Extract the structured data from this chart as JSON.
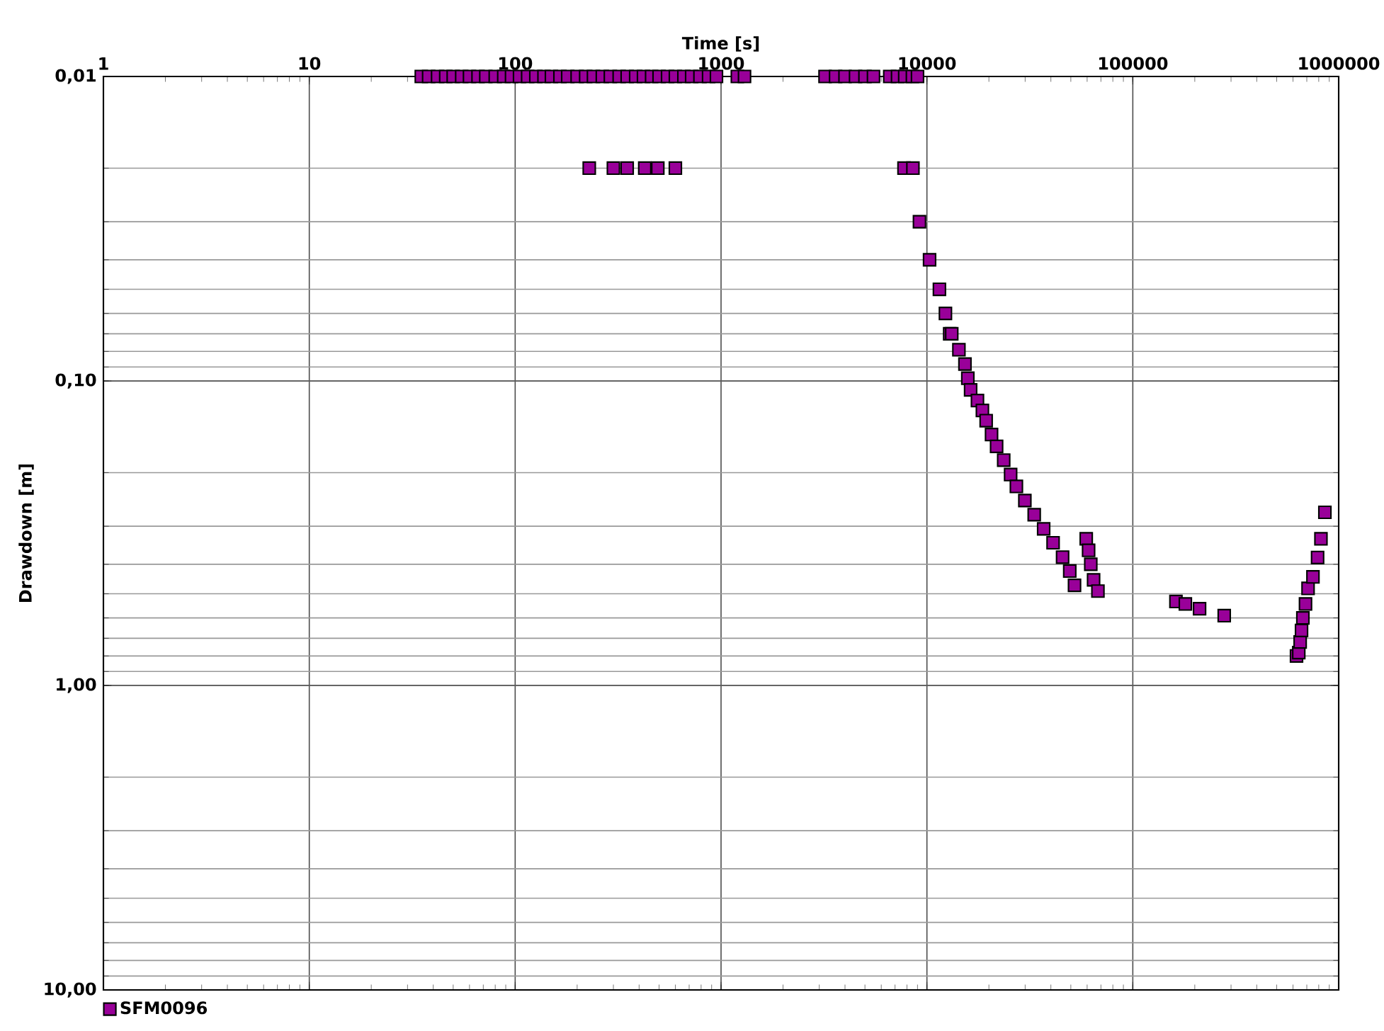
{
  "chart_data": {
    "type": "scatter",
    "xlabel": "Time [s]",
    "ylabel": "Drawdown [m]",
    "log": "xy",
    "grid": true,
    "legend": "bottom left",
    "marker": "square",
    "xlim": [
      1,
      1000000
    ],
    "xticks": [
      1,
      10,
      100,
      1000,
      10000,
      100000,
      1000000
    ],
    "ylim": [
      10,
      0.01
    ],
    "yticks": [
      {
        "value": 0.01,
        "label": "0,01"
      },
      {
        "value": 0.1,
        "label": "0,10"
      },
      {
        "value": 1,
        "label": "1,00"
      },
      {
        "value": 10,
        "label": "10,00"
      }
    ],
    "series": [
      {
        "name": "SFM0096",
        "color": "#990099",
        "x": [
          35,
          38,
          42,
          46,
          50,
          55,
          60,
          66,
          72,
          80,
          88,
          96,
          105,
          115,
          126,
          138,
          150,
          165,
          180,
          200,
          220,
          240,
          265,
          290,
          320,
          350,
          385,
          420,
          460,
          500,
          550,
          600,
          660,
          720,
          790,
          870,
          950,
          1200,
          1300,
          3200,
          3600,
          4000,
          4500,
          5000,
          5500,
          6600,
          7200,
          7800,
          8500,
          9000,
          229,
          300,
          350,
          426,
          493,
          600,
          7740,
          8550,
          9200,
          10300,
          11500,
          12300,
          12900,
          13200,
          14300,
          15300,
          15800,
          16300,
          17600,
          18600,
          19400,
          20600,
          21800,
          23600,
          25500,
          27200,
          29900,
          33200,
          36900,
          41000,
          45600,
          49400,
          52100,
          59400,
          61000,
          62500,
          64500,
          67700,
          162000,
          180000,
          211000,
          278000,
          624000,
          640000,
          650000,
          660000,
          670000,
          690000,
          710000,
          750000,
          790000,
          820000,
          857000
        ],
        "values": [
          0.01,
          0.01,
          0.01,
          0.01,
          0.01,
          0.01,
          0.01,
          0.01,
          0.01,
          0.01,
          0.01,
          0.01,
          0.01,
          0.01,
          0.01,
          0.01,
          0.01,
          0.01,
          0.01,
          0.01,
          0.01,
          0.01,
          0.01,
          0.01,
          0.01,
          0.01,
          0.01,
          0.01,
          0.01,
          0.01,
          0.01,
          0.01,
          0.01,
          0.01,
          0.01,
          0.01,
          0.01,
          0.01,
          0.01,
          0.01,
          0.01,
          0.01,
          0.01,
          0.01,
          0.01,
          0.01,
          0.01,
          0.01,
          0.01,
          0.01,
          0.02,
          0.02,
          0.02,
          0.02,
          0.02,
          0.02,
          0.02,
          0.02,
          0.03,
          0.04,
          0.05,
          0.06,
          0.07,
          0.07,
          0.079,
          0.088,
          0.098,
          0.107,
          0.116,
          0.125,
          0.135,
          0.15,
          0.164,
          0.182,
          0.203,
          0.222,
          0.247,
          0.275,
          0.306,
          0.34,
          0.379,
          0.421,
          0.469,
          0.33,
          0.36,
          0.4,
          0.45,
          0.49,
          0.53,
          0.54,
          0.56,
          0.59,
          0.8,
          0.78,
          0.72,
          0.66,
          0.6,
          0.54,
          0.48,
          0.44,
          0.38,
          0.33,
          0.27
        ]
      }
    ]
  }
}
